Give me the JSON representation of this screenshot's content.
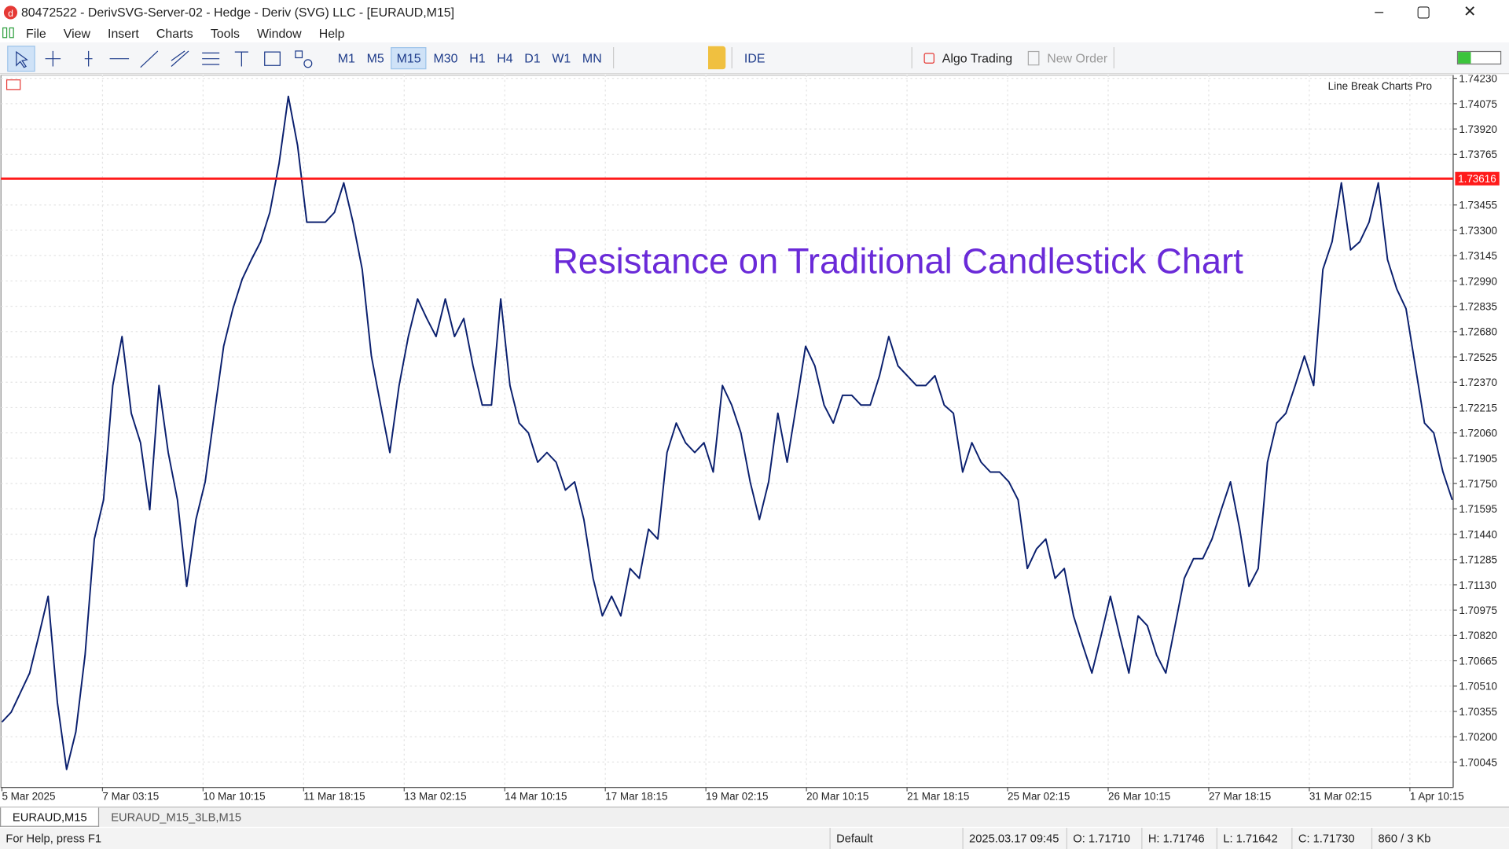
{
  "window": {
    "title": "80472522 - DerivSVG-Server-02 - Hedge - Deriv (SVG) LLC - [EURAUD,M15]"
  },
  "menu": [
    "File",
    "View",
    "Insert",
    "Charts",
    "Tools",
    "Window",
    "Help"
  ],
  "toolbar": {
    "timeframes": [
      "M1",
      "M5",
      "M15",
      "M30",
      "H1",
      "H4",
      "D1",
      "W1",
      "MN"
    ],
    "active_timeframe": "M15",
    "ide": "IDE",
    "algo_trading": "Algo Trading",
    "new_order": "New Order"
  },
  "chart_data": {
    "type": "line",
    "title": "Resistance on Traditional Candlestick Chart",
    "indicator": "Line Break Charts Pro",
    "color": "#0a1f6e",
    "values": [
      1.7029,
      1.7035,
      1.7047,
      1.7059,
      1.7082,
      1.7106,
      1.7041,
      1.7,
      1.7023,
      1.707,
      1.7141,
      1.7165,
      1.7235,
      1.7265,
      1.7218,
      1.72,
      1.7159,
      1.7235,
      1.7194,
      1.7165,
      1.7112,
      1.7153,
      1.7176,
      1.7218,
      1.7259,
      1.7282,
      1.73,
      1.7312,
      1.7323,
      1.7341,
      1.7371,
      1.7412,
      1.7382,
      1.7335,
      1.7335,
      1.7335,
      1.7341,
      1.7359,
      1.7335,
      1.7306,
      1.7253,
      1.7223,
      1.7194,
      1.7235,
      1.7265,
      1.7288,
      1.7276,
      1.7265,
      1.7288,
      1.7265,
      1.7276,
      1.7247,
      1.7223,
      1.7223,
      1.7288,
      1.7235,
      1.7212,
      1.7206,
      1.7188,
      1.7194,
      1.7188,
      1.7171,
      1.7176,
      1.7153,
      1.7117,
      1.7094,
      1.7106,
      1.7094,
      1.7123,
      1.7117,
      1.7147,
      1.7141,
      1.7194,
      1.7212,
      1.72,
      1.7194,
      1.72,
      1.7182,
      1.7235,
      1.7223,
      1.7206,
      1.7176,
      1.7153,
      1.7176,
      1.7218,
      1.7188,
      1.7223,
      1.7259,
      1.7247,
      1.7223,
      1.7212,
      1.7229,
      1.7229,
      1.7223,
      1.7223,
      1.7241,
      1.7265,
      1.7247,
      1.7241,
      1.7235,
      1.7235,
      1.7241,
      1.7223,
      1.7218,
      1.7182,
      1.72,
      1.7188,
      1.7182,
      1.7182,
      1.7176,
      1.7165,
      1.7123,
      1.7135,
      1.7141,
      1.7117,
      1.7123,
      1.7094,
      1.7076,
      1.7059,
      1.7082,
      1.7106,
      1.7082,
      1.7059,
      1.7094,
      1.7088,
      1.707,
      1.7059,
      1.7088,
      1.7117,
      1.7129,
      1.7129,
      1.7141,
      1.7159,
      1.7176,
      1.7147,
      1.7112,
      1.7123,
      1.7188,
      1.7212,
      1.7218,
      1.7235,
      1.7253,
      1.7235,
      1.7306,
      1.7323,
      1.7359,
      1.7318,
      1.7323,
      1.7335,
      1.7359,
      1.7312,
      1.7294,
      1.7282,
      1.7247,
      1.7212,
      1.7206,
      1.7182,
      1.7165
    ],
    "x_labels": [
      "5 Mar 2025",
      "7 Mar 03:15",
      "10 Mar 10:15",
      "11 Mar 18:15",
      "13 Mar 02:15",
      "14 Mar 10:15",
      "17 Mar 18:15",
      "19 Mar 02:15",
      "20 Mar 10:15",
      "21 Mar 18:15",
      "25 Mar 02:15",
      "26 Mar 10:15",
      "27 Mar 18:15",
      "31 Mar 02:15",
      "1 Apr 10:15"
    ],
    "ylim": [
      1.6989,
      1.7425
    ],
    "yticks": [
      {
        "value": 1.7423,
        "label": "1.74230"
      },
      {
        "value": 1.74075,
        "label": "1.74075"
      },
      {
        "value": 1.7392,
        "label": "1.73920"
      },
      {
        "value": 1.73765,
        "label": "1.73765"
      },
      {
        "value": 1.73455,
        "label": "1.73455"
      },
      {
        "value": 1.733,
        "label": "1.73300"
      },
      {
        "value": 1.73145,
        "label": "1.73145"
      },
      {
        "value": 1.7299,
        "label": "1.72990"
      },
      {
        "value": 1.72835,
        "label": "1.72835"
      },
      {
        "value": 1.7268,
        "label": "1.72680"
      },
      {
        "value": 1.72525,
        "label": "1.72525"
      },
      {
        "value": 1.7237,
        "label": "1.72370"
      },
      {
        "value": 1.72215,
        "label": "1.72215"
      },
      {
        "value": 1.7206,
        "label": "1.72060"
      },
      {
        "value": 1.71905,
        "label": "1.71905"
      },
      {
        "value": 1.7175,
        "label": "1.71750"
      },
      {
        "value": 1.71595,
        "label": "1.71595"
      },
      {
        "value": 1.7144,
        "label": "1.71440"
      },
      {
        "value": 1.71285,
        "label": "1.71285"
      },
      {
        "value": 1.7113,
        "label": "1.71130"
      },
      {
        "value": 1.70975,
        "label": "1.70975"
      },
      {
        "value": 1.7082,
        "label": "1.70820"
      },
      {
        "value": 1.70665,
        "label": "1.70665"
      },
      {
        "value": 1.7051,
        "label": "1.70510"
      },
      {
        "value": 1.70355,
        "label": "1.70355"
      },
      {
        "value": 1.702,
        "label": "1.70200"
      },
      {
        "value": 1.70045,
        "label": "1.70045"
      }
    ],
    "resistance": {
      "value": 1.73616,
      "label": "1.73616",
      "color": "#ff1a1a"
    },
    "grid": true
  },
  "tabs": [
    "EURAUD,M15",
    "EURAUD_M15_3LB,M15"
  ],
  "status_bar": {
    "help": "For Help, press F1",
    "profile": "Default",
    "time": "2025.03.17 09:45",
    "open": "O: 1.71710",
    "high": "H: 1.71746",
    "low": "L: 1.71642",
    "close": "C: 1.71730",
    "traffic": "860 / 3 Kb"
  }
}
